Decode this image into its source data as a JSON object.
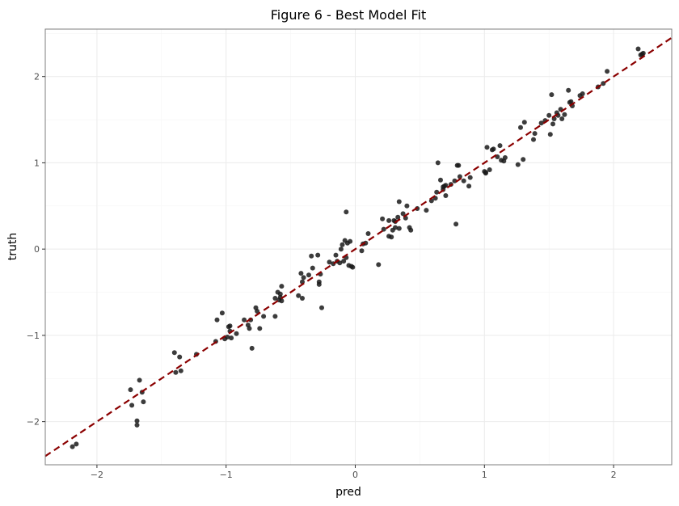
{
  "chart_data": {
    "type": "scatter",
    "title": "Figure 6 - Best Model Fit",
    "xlabel": "pred",
    "ylabel": "truth",
    "xlim": [
      -2.4,
      2.45
    ],
    "ylim": [
      -2.5,
      2.55
    ],
    "xticks": [
      -2,
      -1,
      0,
      1,
      2
    ],
    "yticks": [
      -2,
      -1,
      0,
      1,
      2
    ],
    "xtick_labels": [
      "−2",
      "−1",
      "0",
      "1",
      "2"
    ],
    "ytick_labels": [
      "−2",
      "−1",
      "0",
      "1",
      "2"
    ],
    "grid": true,
    "legend": "none",
    "colors": {
      "points": "#1a1a1a",
      "fit_line": "#8b0000",
      "grid_major": "#ebebeb",
      "grid_minor": "#f5f5f5",
      "frame": "#7f7f7f"
    },
    "fit_line": {
      "slope": 1,
      "intercept": 0,
      "style": "dashed"
    },
    "points": [
      [
        -2.19,
        -2.29
      ],
      [
        -2.16,
        -2.26
      ],
      [
        -1.73,
        -1.81
      ],
      [
        -1.74,
        -1.63
      ],
      [
        -1.69,
        -1.99
      ],
      [
        -1.69,
        -2.04
      ],
      [
        -1.67,
        -1.52
      ],
      [
        -1.65,
        -1.66
      ],
      [
        -1.64,
        -1.77
      ],
      [
        -1.4,
        -1.2
      ],
      [
        -1.39,
        -1.43
      ],
      [
        -1.36,
        -1.25
      ],
      [
        -1.35,
        -1.41
      ],
      [
        -1.23,
        -1.22
      ],
      [
        -1.08,
        -1.07
      ],
      [
        -1.07,
        -0.82
      ],
      [
        -1.03,
        -0.74
      ],
      [
        -1.01,
        -1.04
      ],
      [
        -0.99,
        -1.02
      ],
      [
        -0.98,
        -0.9
      ],
      [
        -0.97,
        -0.89
      ],
      [
        -0.96,
        -1.03
      ],
      [
        -0.97,
        -0.95
      ],
      [
        -0.92,
        -0.98
      ],
      [
        -0.86,
        -0.82
      ],
      [
        -0.83,
        -0.88
      ],
      [
        -0.82,
        -0.92
      ],
      [
        -0.81,
        -0.82
      ],
      [
        -0.8,
        -1.15
      ],
      [
        -0.77,
        -0.68
      ],
      [
        -0.76,
        -0.72
      ],
      [
        -0.74,
        -0.92
      ],
      [
        -0.71,
        -0.78
      ],
      [
        -0.62,
        -0.57
      ],
      [
        -0.62,
        -0.78
      ],
      [
        -0.6,
        -0.5
      ],
      [
        -0.59,
        -0.59
      ],
      [
        -0.58,
        -0.56
      ],
      [
        -0.58,
        -0.52
      ],
      [
        -0.57,
        -0.6
      ],
      [
        -0.57,
        -0.43
      ],
      [
        -0.44,
        -0.54
      ],
      [
        -0.42,
        -0.28
      ],
      [
        -0.41,
        -0.57
      ],
      [
        -0.41,
        -0.38
      ],
      [
        -0.4,
        -0.33
      ],
      [
        -0.36,
        -0.3
      ],
      [
        -0.34,
        -0.08
      ],
      [
        -0.33,
        -0.22
      ],
      [
        -0.29,
        -0.07
      ],
      [
        -0.28,
        -0.38
      ],
      [
        -0.28,
        -0.41
      ],
      [
        -0.27,
        -0.29
      ],
      [
        -0.26,
        -0.68
      ],
      [
        -0.2,
        -0.15
      ],
      [
        -0.17,
        -0.17
      ],
      [
        -0.15,
        -0.07
      ],
      [
        -0.14,
        -0.14
      ],
      [
        -0.12,
        -0.16
      ],
      [
        -0.11,
        0.0
      ],
      [
        -0.1,
        0.05
      ],
      [
        -0.09,
        -0.14
      ],
      [
        -0.08,
        0.1
      ],
      [
        -0.07,
        0.43
      ],
      [
        -0.07,
        -0.1
      ],
      [
        -0.06,
        0.07
      ],
      [
        -0.05,
        -0.19
      ],
      [
        -0.04,
        0.09
      ],
      [
        -0.03,
        -0.2
      ],
      [
        -0.02,
        -0.21
      ],
      [
        0.05,
        -0.02
      ],
      [
        0.06,
        0.06
      ],
      [
        0.08,
        0.07
      ],
      [
        0.1,
        0.18
      ],
      [
        0.18,
        -0.18
      ],
      [
        0.21,
        0.35
      ],
      [
        0.22,
        0.23
      ],
      [
        0.26,
        0.15
      ],
      [
        0.26,
        0.33
      ],
      [
        0.28,
        0.14
      ],
      [
        0.29,
        0.22
      ],
      [
        0.3,
        0.33
      ],
      [
        0.31,
        0.32
      ],
      [
        0.31,
        0.25
      ],
      [
        0.33,
        0.37
      ],
      [
        0.34,
        0.24
      ],
      [
        0.34,
        0.55
      ],
      [
        0.37,
        0.41
      ],
      [
        0.39,
        0.36
      ],
      [
        0.4,
        0.5
      ],
      [
        0.42,
        0.25
      ],
      [
        0.43,
        0.22
      ],
      [
        0.48,
        0.47
      ],
      [
        0.55,
        0.45
      ],
      [
        0.59,
        0.56
      ],
      [
        0.62,
        0.59
      ],
      [
        0.63,
        0.66
      ],
      [
        0.64,
        1.0
      ],
      [
        0.66,
        0.8
      ],
      [
        0.68,
        0.72
      ],
      [
        0.68,
        0.69
      ],
      [
        0.69,
        0.73
      ],
      [
        0.7,
        0.62
      ],
      [
        0.7,
        0.74
      ],
      [
        0.74,
        0.75
      ],
      [
        0.77,
        0.79
      ],
      [
        0.78,
        0.29
      ],
      [
        0.79,
        0.97
      ],
      [
        0.8,
        0.97
      ],
      [
        0.81,
        0.84
      ],
      [
        0.84,
        0.79
      ],
      [
        0.88,
        0.73
      ],
      [
        0.89,
        0.83
      ],
      [
        1.0,
        0.9
      ],
      [
        1.01,
        0.88
      ],
      [
        1.01,
        0.89
      ],
      [
        1.02,
        1.18
      ],
      [
        1.04,
        0.92
      ],
      [
        1.06,
        1.15
      ],
      [
        1.07,
        1.16
      ],
      [
        1.1,
        1.07
      ],
      [
        1.12,
        1.2
      ],
      [
        1.13,
        1.03
      ],
      [
        1.15,
        1.02
      ],
      [
        1.16,
        1.06
      ],
      [
        1.26,
        0.98
      ],
      [
        1.28,
        1.41
      ],
      [
        1.3,
        1.04
      ],
      [
        1.31,
        1.47
      ],
      [
        1.38,
        1.27
      ],
      [
        1.39,
        1.34
      ],
      [
        1.44,
        1.46
      ],
      [
        1.47,
        1.49
      ],
      [
        1.5,
        1.55
      ],
      [
        1.51,
        1.33
      ],
      [
        1.52,
        1.79
      ],
      [
        1.53,
        1.45
      ],
      [
        1.54,
        1.51
      ],
      [
        1.56,
        1.58
      ],
      [
        1.57,
        1.55
      ],
      [
        1.59,
        1.62
      ],
      [
        1.6,
        1.51
      ],
      [
        1.62,
        1.56
      ],
      [
        1.65,
        1.84
      ],
      [
        1.66,
        1.7
      ],
      [
        1.67,
        1.71
      ],
      [
        1.68,
        1.66
      ],
      [
        1.74,
        1.78
      ],
      [
        1.76,
        1.8
      ],
      [
        1.88,
        1.88
      ],
      [
        1.92,
        1.92
      ],
      [
        1.95,
        2.06
      ],
      [
        2.19,
        2.32
      ],
      [
        2.21,
        2.25
      ],
      [
        2.22,
        2.26
      ],
      [
        2.23,
        2.27
      ]
    ]
  }
}
